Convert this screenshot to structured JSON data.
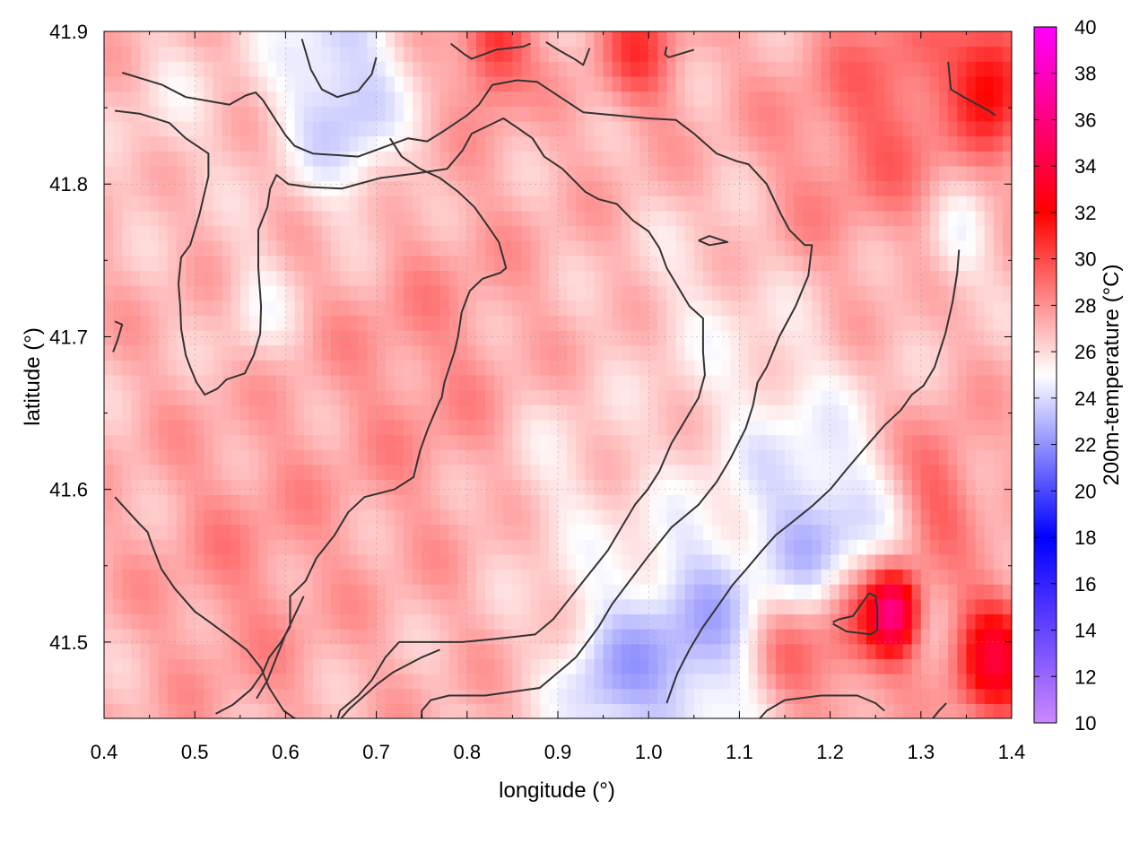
{
  "chart_data": {
    "type": "heatmap",
    "title": "",
    "xlabel": "longitude (°)",
    "ylabel": "latitude (°)",
    "colorbar_label": "200m-temperature (°C)",
    "xlim": [
      0.4,
      1.4
    ],
    "ylim": [
      41.45,
      41.9
    ],
    "x_ticks": [
      "0.4",
      "0.5",
      "0.6",
      "0.7",
      "0.8",
      "0.9",
      "1.0",
      "1.1",
      "1.2",
      "1.3",
      "1.4"
    ],
    "x_tick_values": [
      0.4,
      0.5,
      0.6,
      0.7,
      0.8,
      0.9,
      1.0,
      1.1,
      1.2,
      1.3,
      1.4
    ],
    "y_ticks": [
      "41.5",
      "41.6",
      "41.7",
      "41.8",
      "41.9"
    ],
    "y_tick_values": [
      41.5,
      41.6,
      41.7,
      41.8,
      41.9
    ],
    "grid": true,
    "colorbar": {
      "ticks": [
        "10",
        "12",
        "14",
        "16",
        "18",
        "20",
        "22",
        "24",
        "26",
        "28",
        "30",
        "32",
        "34",
        "36",
        "38",
        "40"
      ],
      "tick_values": [
        10,
        12,
        14,
        16,
        18,
        20,
        22,
        24,
        26,
        28,
        30,
        32,
        34,
        36,
        38,
        40
      ],
      "range": [
        10,
        40
      ],
      "color_stops": [
        {
          "value": 10,
          "color": "#cc88ff"
        },
        {
          "value": 18,
          "color": "#0000ff"
        },
        {
          "value": 25,
          "color": "#ffffff"
        },
        {
          "value": 32,
          "color": "#ff0000"
        },
        {
          "value": 40,
          "color": "#ff00ff"
        }
      ]
    },
    "temperature_field": {
      "background_value": 27,
      "features": [
        {
          "lon": 0.65,
          "lat": 41.88,
          "value": 24,
          "radius": 0.05
        },
        {
          "lon": 0.57,
          "lat": 41.72,
          "value": 25.5,
          "radius": 0.03
        },
        {
          "lon": 0.47,
          "lat": 41.85,
          "value": 26,
          "radius": 0.04
        },
        {
          "lon": 0.75,
          "lat": 41.68,
          "value": 28,
          "radius": 0.08
        },
        {
          "lon": 0.55,
          "lat": 41.55,
          "value": 28,
          "radius": 0.07
        },
        {
          "lon": 0.9,
          "lat": 41.6,
          "value": 25.8,
          "radius": 0.05
        },
        {
          "lon": 1.05,
          "lat": 41.72,
          "value": 26,
          "radius": 0.05
        },
        {
          "lon": 1.05,
          "lat": 41.5,
          "value": 23,
          "radius": 0.06
        },
        {
          "lon": 1.2,
          "lat": 41.56,
          "value": 23.5,
          "radius": 0.05
        },
        {
          "lon": 0.95,
          "lat": 41.47,
          "value": 24,
          "radius": 0.04
        },
        {
          "lon": 1.15,
          "lat": 41.64,
          "value": 25.5,
          "radius": 0.06
        },
        {
          "lon": 1.27,
          "lat": 41.52,
          "value": 36,
          "radius": 0.02
        },
        {
          "lon": 1.22,
          "lat": 41.51,
          "value": 31,
          "radius": 0.03
        },
        {
          "lon": 1.15,
          "lat": 41.49,
          "value": 30,
          "radius": 0.03
        },
        {
          "lon": 1.38,
          "lat": 41.49,
          "value": 33,
          "radius": 0.03
        },
        {
          "lon": 1.32,
          "lat": 41.6,
          "value": 29.5,
          "radius": 0.03
        },
        {
          "lon": 1.38,
          "lat": 41.87,
          "value": 32,
          "radius": 0.03
        },
        {
          "lon": 1.28,
          "lat": 41.86,
          "value": 29,
          "radius": 0.05
        },
        {
          "lon": 1.2,
          "lat": 41.82,
          "value": 28,
          "radius": 0.06
        },
        {
          "lon": 0.83,
          "lat": 41.89,
          "value": 31,
          "radius": 0.025
        },
        {
          "lon": 0.99,
          "lat": 41.89,
          "value": 30,
          "radius": 0.03
        },
        {
          "lon": 1.34,
          "lat": 41.76,
          "value": 25,
          "radius": 0.025
        },
        {
          "lon": 0.68,
          "lat": 41.83,
          "value": 25.3,
          "radius": 0.04
        }
      ]
    },
    "contours": [
      [
        [
          0.42,
          41.873
        ],
        [
          0.464,
          41.865
        ],
        [
          0.49,
          41.857
        ],
        [
          0.538,
          41.852
        ],
        [
          0.556,
          41.858
        ],
        [
          0.567,
          41.86
        ],
        [
          0.575,
          41.855
        ],
        [
          0.6,
          41.832
        ],
        [
          0.61,
          41.825
        ],
        [
          0.63,
          41.82
        ],
        [
          0.68,
          41.818
        ],
        [
          0.735,
          41.83
        ],
        [
          0.756,
          41.828
        ],
        [
          0.775,
          41.835
        ],
        [
          0.8,
          41.845
        ],
        [
          0.813,
          41.852
        ],
        [
          0.828,
          41.865
        ],
        [
          0.855,
          41.868
        ],
        [
          0.877,
          41.867
        ],
        [
          0.928,
          41.847
        ],
        [
          1.0,
          41.843
        ],
        [
          1.03,
          41.842
        ],
        [
          1.05,
          41.833
        ],
        [
          1.075,
          41.82
        ],
        [
          1.097,
          41.815
        ],
        [
          1.11,
          41.813
        ],
        [
          1.13,
          41.8
        ],
        [
          1.146,
          41.78
        ],
        [
          1.155,
          41.77
        ],
        [
          1.172,
          41.76
        ],
        [
          1.18,
          41.76
        ],
        [
          1.176,
          41.74
        ],
        [
          1.162,
          41.72
        ],
        [
          1.144,
          41.7
        ],
        [
          1.13,
          41.68
        ],
        [
          1.12,
          41.67
        ],
        [
          1.115,
          41.655
        ],
        [
          1.107,
          41.64
        ],
        [
          1.09,
          41.62
        ],
        [
          1.075,
          41.605
        ],
        [
          1.055,
          41.59
        ],
        [
          1.025,
          41.575
        ],
        [
          0.998,
          41.555
        ],
        [
          0.96,
          41.525
        ],
        [
          0.945,
          41.51
        ],
        [
          0.92,
          41.49
        ],
        [
          0.88,
          41.47
        ],
        [
          0.82,
          41.465
        ],
        [
          0.78,
          41.465
        ],
        [
          0.76,
          41.462
        ],
        [
          0.75,
          41.455
        ],
        [
          0.75,
          41.44
        ]
      ],
      [
        [
          0.412,
          41.848
        ],
        [
          0.44,
          41.846
        ],
        [
          0.472,
          41.84
        ],
        [
          0.49,
          41.83
        ],
        [
          0.515,
          41.82
        ],
        [
          0.515,
          41.805
        ],
        [
          0.505,
          41.78
        ],
        [
          0.495,
          41.76
        ],
        [
          0.485,
          41.752
        ],
        [
          0.482,
          41.735
        ],
        [
          0.484,
          41.72
        ],
        [
          0.485,
          41.705
        ],
        [
          0.49,
          41.688
        ],
        [
          0.495,
          41.68
        ],
        [
          0.502,
          41.67
        ],
        [
          0.511,
          41.662
        ],
        [
          0.525,
          41.666
        ],
        [
          0.535,
          41.672
        ],
        [
          0.555,
          41.676
        ],
        [
          0.565,
          41.688
        ],
        [
          0.572,
          41.702
        ],
        [
          0.573,
          41.72
        ],
        [
          0.57,
          41.745
        ],
        [
          0.57,
          41.77
        ],
        [
          0.58,
          41.785
        ],
        [
          0.583,
          41.797
        ],
        [
          0.59,
          41.806
        ],
        [
          0.603,
          41.8
        ],
        [
          0.627,
          41.798
        ],
        [
          0.662,
          41.797
        ],
        [
          0.68,
          41.8
        ],
        [
          0.705,
          41.804
        ],
        [
          0.745,
          41.807
        ],
        [
          0.778,
          41.81
        ],
        [
          0.795,
          41.822
        ],
        [
          0.805,
          41.833
        ],
        [
          0.84,
          41.843
        ],
        [
          0.855,
          41.837
        ],
        [
          0.872,
          41.83
        ],
        [
          0.885,
          41.818
        ],
        [
          0.905,
          41.81
        ],
        [
          0.93,
          41.795
        ],
        [
          0.945,
          41.79
        ],
        [
          0.965,
          41.787
        ],
        [
          0.983,
          41.776
        ],
        [
          1.0,
          41.769
        ],
        [
          1.012,
          41.758
        ],
        [
          1.02,
          41.745
        ],
        [
          1.035,
          41.73
        ],
        [
          1.045,
          41.72
        ],
        [
          1.06,
          41.712
        ],
        [
          1.06,
          41.69
        ],
        [
          1.062,
          41.675
        ],
        [
          1.055,
          41.66
        ],
        [
          1.04,
          41.645
        ],
        [
          1.025,
          41.63
        ],
        [
          1.012,
          41.612
        ],
        [
          0.999,
          41.6
        ],
        [
          0.985,
          41.59
        ],
        [
          0.97,
          41.575
        ],
        [
          0.955,
          41.56
        ],
        [
          0.935,
          41.545
        ],
        [
          0.915,
          41.53
        ],
        [
          0.895,
          41.515
        ],
        [
          0.875,
          41.505
        ],
        [
          0.83,
          41.502
        ],
        [
          0.795,
          41.5
        ],
        [
          0.75,
          41.5
        ],
        [
          0.725,
          41.5
        ],
        [
          0.71,
          41.49
        ],
        [
          0.695,
          41.475
        ],
        [
          0.68,
          41.465
        ],
        [
          0.66,
          41.455
        ],
        [
          0.655,
          41.445
        ]
      ],
      [
        [
          0.412,
          41.71
        ],
        [
          0.42,
          41.708
        ],
        [
          0.415,
          41.698
        ],
        [
          0.41,
          41.69
        ]
      ],
      [
        [
          0.412,
          41.595
        ],
        [
          0.438,
          41.578
        ],
        [
          0.448,
          41.572
        ],
        [
          0.452,
          41.565
        ],
        [
          0.463,
          41.548
        ],
        [
          0.478,
          41.535
        ],
        [
          0.5,
          41.52
        ],
        [
          0.512,
          41.515
        ],
        [
          0.535,
          41.505
        ],
        [
          0.557,
          41.495
        ],
        [
          0.573,
          41.483
        ],
        [
          0.582,
          41.47
        ],
        [
          0.598,
          41.455
        ],
        [
          0.61,
          41.45
        ],
        [
          0.62,
          41.448
        ]
      ],
      [
        [
          0.523,
          41.453
        ],
        [
          0.542,
          41.459
        ],
        [
          0.562,
          41.469
        ],
        [
          0.575,
          41.48
        ],
        [
          0.582,
          41.49
        ],
        [
          0.595,
          41.5
        ],
        [
          0.605,
          41.51
        ],
        [
          0.605,
          41.53
        ],
        [
          0.622,
          41.54
        ],
        [
          0.634,
          41.555
        ],
        [
          0.654,
          41.57
        ],
        [
          0.669,
          41.585
        ],
        [
          0.687,
          41.595
        ],
        [
          0.72,
          41.6
        ],
        [
          0.741,
          41.608
        ],
        [
          0.748,
          41.625
        ],
        [
          0.757,
          41.64
        ],
        [
          0.77,
          41.658
        ],
        [
          0.772,
          41.66
        ],
        [
          0.775,
          41.67
        ],
        [
          0.786,
          41.69
        ],
        [
          0.79,
          41.7
        ],
        [
          0.794,
          41.716
        ],
        [
          0.803,
          41.73
        ],
        [
          0.817,
          41.738
        ],
        [
          0.837,
          41.742
        ],
        [
          0.843,
          41.745
        ],
        [
          0.835,
          41.762
        ],
        [
          0.82,
          41.775
        ],
        [
          0.808,
          41.785
        ],
        [
          0.79,
          41.795
        ],
        [
          0.77,
          41.804
        ],
        [
          0.748,
          41.81
        ],
        [
          0.728,
          41.818
        ],
        [
          0.715,
          41.83
        ]
      ],
      [
        [
          0.654,
          41.445
        ],
        [
          0.67,
          41.456
        ],
        [
          0.7,
          41.472
        ],
        [
          0.718,
          41.48
        ],
        [
          0.75,
          41.49
        ],
        [
          0.77,
          41.495
        ]
      ],
      [
        [
          0.62,
          41.53
        ],
        [
          0.6,
          41.505
        ],
        [
          0.59,
          41.49
        ],
        [
          0.58,
          41.475
        ],
        [
          0.568,
          41.463
        ]
      ],
      [
        [
          1.02,
          41.46
        ],
        [
          1.027,
          41.472
        ],
        [
          1.032,
          41.48
        ],
        [
          1.045,
          41.495
        ],
        [
          1.06,
          41.51
        ],
        [
          1.078,
          41.525
        ],
        [
          1.092,
          41.537
        ],
        [
          1.108,
          41.548
        ],
        [
          1.125,
          41.56
        ],
        [
          1.14,
          41.57
        ],
        [
          1.157,
          41.578
        ],
        [
          1.18,
          41.589
        ],
        [
          1.2,
          41.6
        ],
        [
          1.218,
          41.613
        ],
        [
          1.238,
          41.627
        ],
        [
          1.26,
          41.642
        ],
        [
          1.278,
          41.652
        ],
        [
          1.29,
          41.662
        ],
        [
          1.303,
          41.668
        ],
        [
          1.315,
          41.68
        ],
        [
          1.327,
          41.702
        ],
        [
          1.335,
          41.723
        ],
        [
          1.34,
          41.742
        ],
        [
          1.342,
          41.757
        ]
      ],
      [
        [
          1.115,
          41.445
        ],
        [
          1.13,
          41.455
        ],
        [
          1.15,
          41.462
        ],
        [
          1.19,
          41.465
        ],
        [
          1.23,
          41.465
        ],
        [
          1.25,
          41.46
        ],
        [
          1.26,
          41.455
        ]
      ],
      [
        [
          1.33,
          41.88
        ],
        [
          1.333,
          41.862
        ],
        [
          1.35,
          41.856
        ],
        [
          1.375,
          41.848
        ],
        [
          1.382,
          41.845
        ]
      ],
      [
        [
          1.203,
          41.513
        ],
        [
          1.21,
          41.515
        ],
        [
          1.225,
          41.517
        ],
        [
          1.243,
          41.532
        ],
        [
          1.25,
          41.53
        ],
        [
          1.252,
          41.522
        ],
        [
          1.252,
          41.508
        ],
        [
          1.245,
          41.505
        ],
        [
          1.218,
          41.507
        ],
        [
          1.203,
          41.512
        ]
      ],
      [
        [
          1.055,
          41.763
        ],
        [
          1.067,
          41.766
        ],
        [
          1.087,
          41.762
        ],
        [
          1.067,
          41.76
        ],
        [
          1.055,
          41.763
        ]
      ],
      [
        [
          0.618,
          41.895
        ],
        [
          0.628,
          41.875
        ],
        [
          0.64,
          41.862
        ],
        [
          0.657,
          41.857
        ],
        [
          0.68,
          41.861
        ],
        [
          0.695,
          41.872
        ],
        [
          0.7,
          41.883
        ]
      ],
      [
        [
          0.782,
          41.892
        ],
        [
          0.797,
          41.885
        ],
        [
          0.805,
          41.882
        ],
        [
          0.832,
          41.888
        ],
        [
          0.862,
          41.89
        ],
        [
          0.87,
          41.892
        ]
      ],
      [
        [
          0.887,
          41.893
        ],
        [
          0.9,
          41.888
        ],
        [
          0.918,
          41.882
        ],
        [
          0.928,
          41.878
        ],
        [
          0.935,
          41.889
        ]
      ],
      [
        [
          1.02,
          41.89
        ],
        [
          1.018,
          41.885
        ],
        [
          1.022,
          41.883
        ],
        [
          1.05,
          41.888
        ]
      ],
      [
        [
          1.313,
          41.45
        ],
        [
          1.32,
          41.455
        ],
        [
          1.328,
          41.46
        ]
      ]
    ]
  }
}
